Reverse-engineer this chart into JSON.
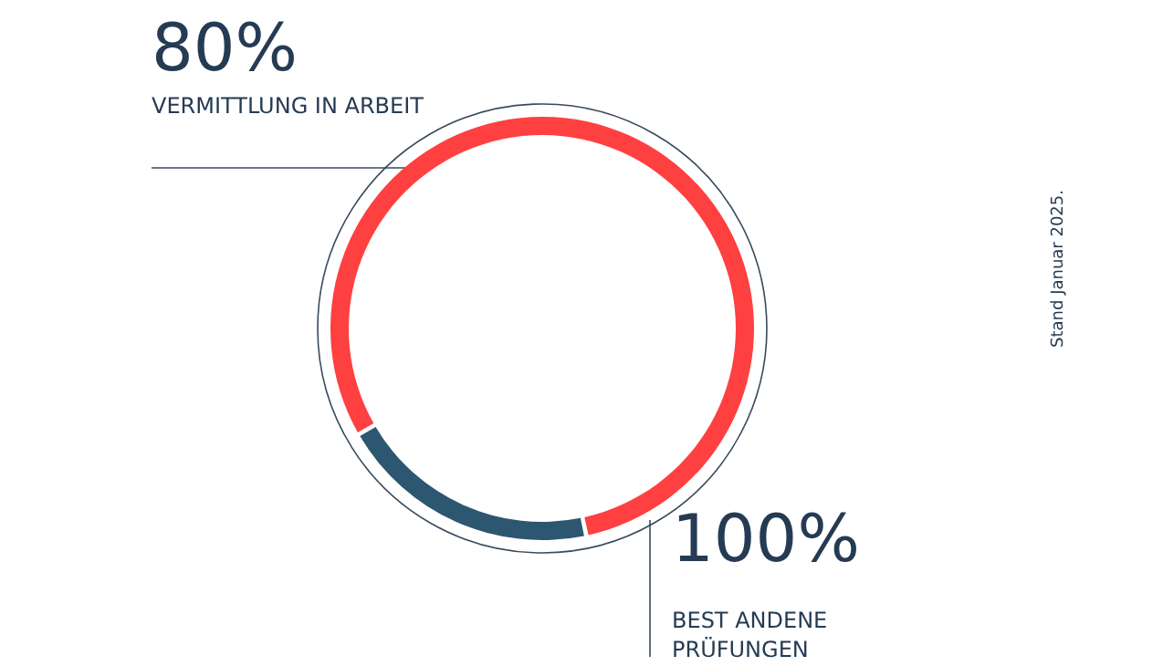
{
  "chart_data": {
    "type": "donut",
    "categories": [
      "VERMITTLUNG IN ARBEIT",
      null
    ],
    "values": [
      80,
      20
    ],
    "colors": [
      "#ff4040",
      "#2d5670"
    ],
    "value_labels": [
      "80%",
      null
    ],
    "annotations": [
      "100%",
      "BEST ANDENE PRÜFUNGEN",
      "Stand Januar 2025."
    ],
    "legend": false
  }
}
